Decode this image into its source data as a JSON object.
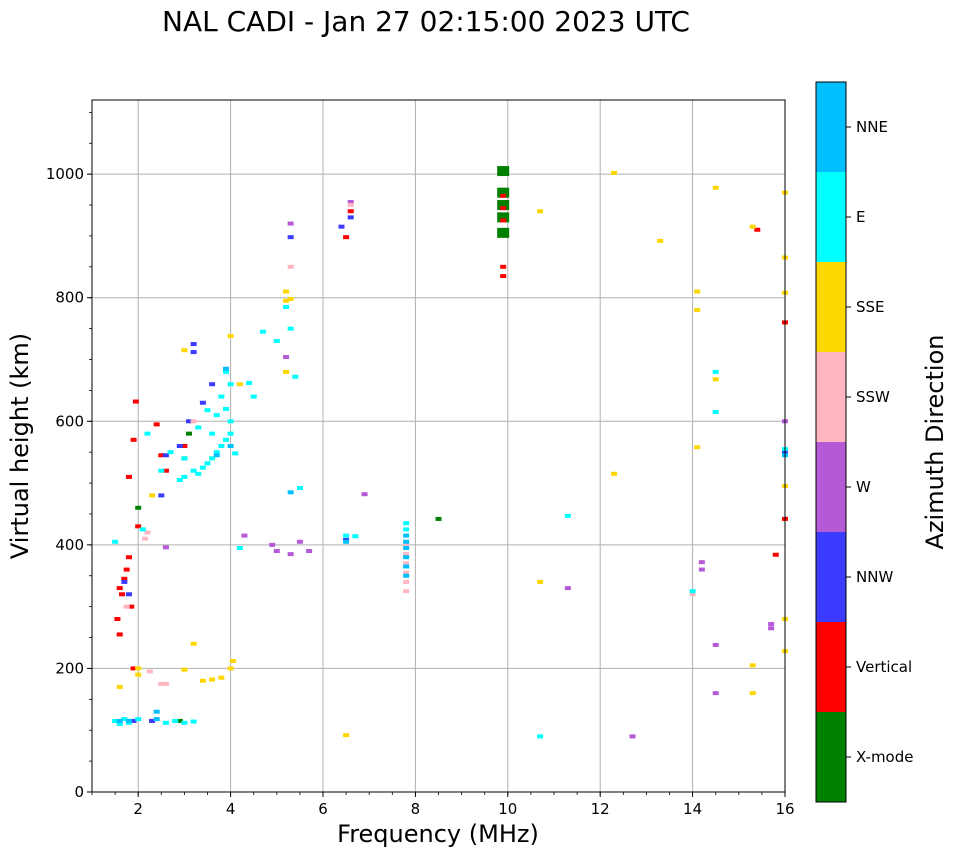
{
  "chart_data": {
    "type": "scatter",
    "title": "NAL CADI - Jan 27 02:15:00 2023 UTC",
    "xlabel": "Frequency (MHz)",
    "ylabel": "Virtual height (km)",
    "xlim": [
      1,
      16
    ],
    "ylim": [
      0,
      1120
    ],
    "xticks": [
      2,
      4,
      6,
      8,
      10,
      12,
      14,
      16
    ],
    "yticks": [
      0,
      200,
      400,
      600,
      800,
      1000
    ],
    "grid": true,
    "colorbar": {
      "label": "Azimuth Direction",
      "categories": [
        {
          "name": "X-mode",
          "color": "#008000"
        },
        {
          "name": "Vertical",
          "color": "#ff0000"
        },
        {
          "name": "NNW",
          "color": "#3b3bff"
        },
        {
          "name": "W",
          "color": "#b45ad6"
        },
        {
          "name": "SSW",
          "color": "#ffb6c1"
        },
        {
          "name": "SSE",
          "color": "#ffd700"
        },
        {
          "name": "E",
          "color": "#00ffff"
        },
        {
          "name": "NNE",
          "color": "#00bfff"
        }
      ]
    },
    "series": [
      {
        "name": "X-mode",
        "points": [
          [
            9.9,
            1005
          ],
          [
            9.9,
            970
          ],
          [
            9.9,
            950
          ],
          [
            9.9,
            930
          ],
          [
            9.9,
            905
          ],
          [
            8.5,
            442
          ],
          [
            2.9,
            115
          ],
          [
            3.0,
            540
          ],
          [
            3.1,
            580
          ],
          [
            2.0,
            460
          ]
        ]
      },
      {
        "name": "Vertical",
        "points": [
          [
            9.9,
            965
          ],
          [
            9.9,
            945
          ],
          [
            9.9,
            925
          ],
          [
            9.9,
            850
          ],
          [
            9.9,
            835
          ],
          [
            6.6,
            940
          ],
          [
            6.5,
            898
          ],
          [
            15.4,
            910
          ],
          [
            15.8,
            384
          ],
          [
            16.0,
            760
          ],
          [
            16.0,
            442
          ],
          [
            1.6,
            330
          ],
          [
            1.65,
            320
          ],
          [
            1.7,
            345
          ],
          [
            1.75,
            360
          ],
          [
            1.8,
            380
          ],
          [
            1.85,
            300
          ],
          [
            1.9,
            570
          ],
          [
            1.95,
            632
          ],
          [
            2.0,
            430
          ],
          [
            1.8,
            510
          ],
          [
            2.4,
            595
          ],
          [
            2.5,
            545
          ],
          [
            2.6,
            520
          ],
          [
            3.0,
            560
          ],
          [
            1.55,
            280
          ],
          [
            1.6,
            255
          ],
          [
            1.9,
            200
          ]
        ]
      },
      {
        "name": "NNW",
        "points": [
          [
            6.6,
            930
          ],
          [
            6.4,
            915
          ],
          [
            5.3,
            898
          ],
          [
            3.2,
            712
          ],
          [
            3.6,
            660
          ],
          [
            3.4,
            630
          ],
          [
            3.1,
            600
          ],
          [
            2.9,
            560
          ],
          [
            2.6,
            545
          ],
          [
            6.5,
            408
          ],
          [
            1.7,
            340
          ],
          [
            1.8,
            320
          ],
          [
            2.3,
            115
          ],
          [
            1.9,
            115
          ],
          [
            16.0,
            550
          ],
          [
            3.2,
            725
          ],
          [
            2.5,
            480
          ]
        ]
      },
      {
        "name": "W",
        "points": [
          [
            5.3,
            920
          ],
          [
            6.6,
            955
          ],
          [
            5.5,
            405
          ],
          [
            5.3,
            385
          ],
          [
            5.0,
            390
          ],
          [
            4.9,
            400
          ],
          [
            5.7,
            390
          ],
          [
            6.9,
            482
          ],
          [
            11.3,
            330
          ],
          [
            14.2,
            360
          ],
          [
            14.2,
            372
          ],
          [
            14.5,
            238
          ],
          [
            14.5,
            160
          ],
          [
            12.7,
            90
          ],
          [
            15.7,
            265
          ],
          [
            15.7,
            272
          ],
          [
            16.0,
            600
          ],
          [
            2.6,
            396
          ],
          [
            5.2,
            704
          ],
          [
            4.3,
            415
          ]
        ]
      },
      {
        "name": "SSW",
        "points": [
          [
            6.6,
            950
          ],
          [
            5.3,
            850
          ],
          [
            7.8,
            400
          ],
          [
            7.8,
            385
          ],
          [
            7.8,
            370
          ],
          [
            7.8,
            355
          ],
          [
            7.8,
            340
          ],
          [
            7.8,
            325
          ],
          [
            2.2,
            420
          ],
          [
            2.15,
            410
          ],
          [
            2.25,
            195
          ],
          [
            2.5,
            175
          ],
          [
            2.6,
            175
          ],
          [
            14.0,
            320
          ],
          [
            1.75,
            300
          ],
          [
            3.2,
            600
          ]
        ]
      },
      {
        "name": "SSE",
        "points": [
          [
            12.3,
            1002
          ],
          [
            14.5,
            978
          ],
          [
            10.7,
            940
          ],
          [
            13.3,
            892
          ],
          [
            15.3,
            915
          ],
          [
            14.1,
            810
          ],
          [
            14.1,
            780
          ],
          [
            14.5,
            668
          ],
          [
            14.1,
            558
          ],
          [
            12.3,
            515
          ],
          [
            10.7,
            340
          ],
          [
            15.3,
            205
          ],
          [
            15.3,
            160
          ],
          [
            5.2,
            810
          ],
          [
            5.2,
            795
          ],
          [
            5.3,
            798
          ],
          [
            5.2,
            680
          ],
          [
            4.0,
            738
          ],
          [
            4.2,
            660
          ],
          [
            3.0,
            715
          ],
          [
            2.3,
            480
          ],
          [
            1.6,
            170
          ],
          [
            2.0,
            190
          ],
          [
            2.0,
            200
          ],
          [
            3.0,
            198
          ],
          [
            3.2,
            240
          ],
          [
            3.4,
            180
          ],
          [
            3.6,
            182
          ],
          [
            3.8,
            185
          ],
          [
            4.0,
            200
          ],
          [
            4.05,
            212
          ],
          [
            6.5,
            92
          ],
          [
            16.0,
            970
          ],
          [
            16.0,
            865
          ],
          [
            16.0,
            808
          ],
          [
            16.0,
            495
          ],
          [
            16.0,
            280
          ],
          [
            16.0,
            228
          ],
          [
            3.6,
            540
          ]
        ]
      },
      {
        "name": "E",
        "points": [
          [
            14.5,
            680
          ],
          [
            14.5,
            615
          ],
          [
            11.3,
            447
          ],
          [
            14.0,
            325
          ],
          [
            10.7,
            90
          ],
          [
            7.8,
            435
          ],
          [
            7.8,
            425
          ],
          [
            3.4,
            525
          ],
          [
            3.5,
            532
          ],
          [
            3.6,
            540
          ],
          [
            3.7,
            550
          ],
          [
            3.8,
            560
          ],
          [
            3.9,
            570
          ],
          [
            4.0,
            580
          ],
          [
            4.0,
            600
          ],
          [
            3.9,
            620
          ],
          [
            3.8,
            640
          ],
          [
            3.9,
            680
          ],
          [
            4.0,
            660
          ],
          [
            3.7,
            610
          ],
          [
            3.3,
            515
          ],
          [
            3.2,
            520
          ],
          [
            3.0,
            510
          ],
          [
            2.9,
            505
          ],
          [
            3.6,
            580
          ],
          [
            4.7,
            745
          ],
          [
            5.0,
            730
          ],
          [
            5.3,
            750
          ],
          [
            4.5,
            640
          ],
          [
            4.4,
            662
          ],
          [
            5.2,
            785
          ],
          [
            5.4,
            672
          ],
          [
            6.5,
            415
          ],
          [
            6.7,
            414
          ],
          [
            4.2,
            395
          ],
          [
            1.5,
            115
          ],
          [
            1.6,
            110
          ],
          [
            1.7,
            118
          ],
          [
            1.8,
            112
          ],
          [
            2.0,
            118
          ],
          [
            2.6,
            112
          ],
          [
            2.8,
            115
          ],
          [
            3.0,
            112
          ],
          [
            3.2,
            114
          ],
          [
            2.1,
            425
          ],
          [
            1.5,
            405
          ],
          [
            2.2,
            580
          ],
          [
            2.5,
            520
          ],
          [
            2.7,
            550
          ],
          [
            3.0,
            540
          ],
          [
            3.3,
            590
          ],
          [
            3.5,
            618
          ],
          [
            4.1,
            548
          ],
          [
            5.5,
            492
          ],
          [
            16.0,
            555
          ]
        ]
      },
      {
        "name": "NNE",
        "points": [
          [
            7.8,
            415
          ],
          [
            7.8,
            405
          ],
          [
            7.8,
            395
          ],
          [
            7.8,
            380
          ],
          [
            7.8,
            365
          ],
          [
            7.8,
            350
          ],
          [
            5.3,
            485
          ],
          [
            6.5,
            405
          ],
          [
            1.6,
            115
          ],
          [
            1.8,
            115
          ],
          [
            2.4,
            118
          ],
          [
            2.4,
            130
          ],
          [
            3.9,
            685
          ],
          [
            4.0,
            560
          ],
          [
            3.7,
            545
          ],
          [
            16.0,
            545
          ]
        ]
      }
    ]
  }
}
